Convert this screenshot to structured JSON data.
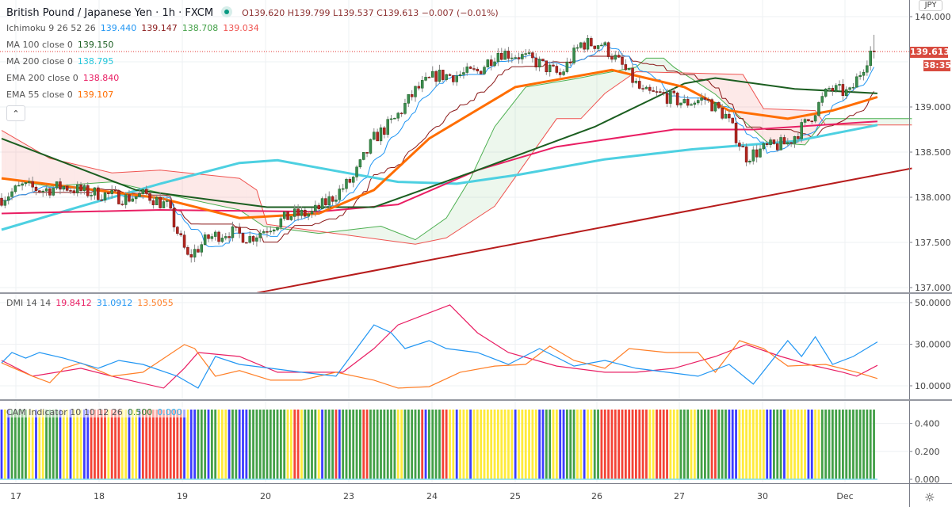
{
  "header": {
    "title": "British Pound / Japanese Yen · 1h · FXCM",
    "ohlc": "O139.620 H139.799 L139.537 C139.613 −0.007 (−0.01%)"
  },
  "legends": {
    "ichimoku": {
      "label": "Ichimoku 9 26 52 26",
      "v1": "139.440",
      "v2": "139.147",
      "v3": "138.708",
      "v4": "139.034"
    },
    "ma100": {
      "label": "MA 100 close 0",
      "value": "139.150"
    },
    "ma200": {
      "label": "MA 200 close 0",
      "value": "138.795"
    },
    "ema200": {
      "label": "EMA 200 close 0",
      "value": "138.840"
    },
    "ema55": {
      "label": "EMA 55 close 0",
      "value": "139.107"
    },
    "dmi": {
      "label": "DMI 14 14",
      "v1": "19.8412",
      "v2": "31.0912",
      "v3": "13.5055"
    },
    "cam": {
      "label": "CAM Indicator 10 10 12 26",
      "v1": "0.500",
      "v2": "0.000"
    }
  },
  "price_axis": {
    "currency": "JPY",
    "ticks": [
      "140.000",
      "139.000",
      "138.500",
      "138.000",
      "137.500",
      "137.000"
    ],
    "last_price": "139.613",
    "countdown": "38:35"
  },
  "dmi_axis": {
    "ticks": [
      "50.0000",
      "30.0000",
      "10.0000"
    ]
  },
  "cam_axis": {
    "ticks": [
      "0.400",
      "0.200",
      "0.000"
    ]
  },
  "time_axis": {
    "ticks": [
      "17",
      "18",
      "19",
      "20",
      "23",
      "24",
      "25",
      "26",
      "27",
      "30",
      "Dec"
    ]
  },
  "icons": {
    "collapse": "chevron-up-icon",
    "settings": "gear-icon",
    "live": "dot-icon"
  },
  "colors": {
    "up": "#3a8c4f",
    "down": "#b3261e",
    "tenkan": "#2196f3",
    "kijun": "#8b1a1a",
    "spanA": "#4caf50",
    "spanB": "#ef5350",
    "ma100": "#1b5e20",
    "ma200": "#4dd0e1",
    "ema200": "#e91e63",
    "ema55": "#ff6d00",
    "trend": "#b71c1c",
    "dmi_adx": "#e91e63",
    "dmi_plus": "#2196f3",
    "dmi_minus": "#ff7f27",
    "cam": {
      "G": "#43a047",
      "R": "#f44336",
      "Y": "#ffeb3b",
      "B": "#3d3dff"
    }
  },
  "chart_data": {
    "type": "candlestick",
    "symbol": "GBPJPY",
    "timeframe": "1h",
    "bars": 254,
    "ylim": [
      136.95,
      140.1
    ],
    "close_keypoints_every_6_bars": [
      137.99,
      138.12,
      138.08,
      138.12,
      138.06,
      138.03,
      137.99,
      138.03,
      137.9,
      137.33,
      137.55,
      137.62,
      137.55,
      137.68,
      137.8,
      137.82,
      138.0,
      138.21,
      138.65,
      138.86,
      139.18,
      139.35,
      139.35,
      139.39,
      139.61,
      139.57,
      139.48,
      139.35,
      139.7,
      139.7,
      139.45,
      139.15,
      139.13,
      139.04,
      139.09,
      138.9,
      138.45,
      138.55,
      138.6,
      138.85,
      139.2,
      139.15,
      139.613
    ],
    "last": {
      "open": 139.62,
      "high": 139.799,
      "low": 139.537,
      "close": 139.613
    },
    "lines": {
      "ma200": [
        [
          0,
          137.64
        ],
        [
          23,
          137.9
        ],
        [
          46,
          138.15
        ],
        [
          69,
          138.38
        ],
        [
          80,
          138.41
        ],
        [
          100,
          138.27
        ],
        [
          115,
          138.17
        ],
        [
          132,
          138.15
        ],
        [
          150,
          138.25
        ],
        [
          175,
          138.42
        ],
        [
          200,
          138.53
        ],
        [
          230,
          138.62
        ],
        [
          254,
          138.8
        ]
      ],
      "ma100": [
        [
          0,
          138.65
        ],
        [
          39,
          138.08
        ],
        [
          77,
          137.89
        ],
        [
          108,
          137.89
        ],
        [
          138,
          138.3
        ],
        [
          172,
          138.78
        ],
        [
          198,
          139.26
        ],
        [
          207,
          139.32
        ],
        [
          230,
          139.2
        ],
        [
          254,
          139.15
        ]
      ],
      "ema55": [
        [
          0,
          138.21
        ],
        [
          23,
          138.1
        ],
        [
          46,
          137.99
        ],
        [
          69,
          137.77
        ],
        [
          92,
          137.82
        ],
        [
          108,
          138.08
        ],
        [
          124,
          138.65
        ],
        [
          149,
          139.22
        ],
        [
          177,
          139.41
        ],
        [
          198,
          139.22
        ],
        [
          211,
          138.96
        ],
        [
          228,
          138.87
        ],
        [
          241,
          138.96
        ],
        [
          254,
          139.11
        ]
      ],
      "ema200": [
        [
          0,
          137.82
        ],
        [
          46,
          137.86
        ],
        [
          92,
          137.84
        ],
        [
          115,
          137.92
        ],
        [
          138,
          138.3
        ],
        [
          161,
          138.56
        ],
        [
          195,
          138.75
        ],
        [
          218,
          138.75
        ],
        [
          254,
          138.84
        ]
      ],
      "trendline": [
        [
          74,
          136.94
        ],
        [
          264,
          138.32
        ]
      ]
    },
    "ichimoku_cloud": {
      "spanA": [
        [
          0,
          138.21
        ],
        [
          14,
          138.12
        ],
        [
          32,
          138.17
        ],
        [
          53,
          137.99
        ],
        [
          69,
          137.86
        ],
        [
          76,
          137.68
        ],
        [
          92,
          137.6
        ],
        [
          110,
          137.68
        ],
        [
          120,
          137.53
        ],
        [
          129,
          137.77
        ],
        [
          136,
          138.21
        ],
        [
          143,
          138.78
        ],
        [
          152,
          139.22
        ],
        [
          166,
          139.31
        ],
        [
          184,
          139.44
        ],
        [
          187,
          139.54
        ],
        [
          192,
          139.54
        ],
        [
          195,
          139.44
        ],
        [
          207,
          139.14
        ],
        [
          222,
          138.61
        ],
        [
          233,
          138.58
        ],
        [
          239,
          138.87
        ],
        [
          264,
          138.87
        ]
      ],
      "spanB": [
        [
          0,
          138.74
        ],
        [
          14,
          138.43
        ],
        [
          32,
          138.27
        ],
        [
          46,
          138.3
        ],
        [
          69,
          138.21
        ],
        [
          74,
          138.08
        ],
        [
          77,
          137.7
        ],
        [
          120,
          137.48
        ],
        [
          129,
          137.55
        ],
        [
          143,
          137.9
        ],
        [
          161,
          138.87
        ],
        [
          168,
          138.87
        ],
        [
          175,
          139.15
        ],
        [
          184,
          139.39
        ],
        [
          215,
          139.36
        ],
        [
          221,
          138.98
        ],
        [
          236,
          138.96
        ],
        [
          239,
          138.8
        ],
        [
          264,
          138.8
        ]
      ]
    },
    "dmi": {
      "ylim": [
        0,
        55
      ],
      "adx": [
        [
          0,
          22.2
        ],
        [
          9,
          14.6
        ],
        [
          23,
          18.4
        ],
        [
          32,
          14.6
        ],
        [
          47,
          8.9
        ],
        [
          53,
          18.4
        ],
        [
          57,
          26
        ],
        [
          69,
          24.1
        ],
        [
          80,
          16.5
        ],
        [
          99,
          16.5
        ],
        [
          108,
          27.9
        ],
        [
          115,
          39.3
        ],
        [
          124,
          45.1
        ],
        [
          130,
          48.9
        ],
        [
          138,
          35.5
        ],
        [
          147,
          26
        ],
        [
          161,
          19.5
        ],
        [
          175,
          16.5
        ],
        [
          184,
          16.5
        ],
        [
          195,
          18.4
        ],
        [
          207,
          24.1
        ],
        [
          216,
          29.8
        ],
        [
          226,
          24.1
        ],
        [
          234,
          20.3
        ],
        [
          244,
          16.5
        ],
        [
          248,
          14.6
        ],
        [
          254,
          19.84
        ]
      ],
      "plus_di": [
        [
          0,
          21
        ],
        [
          3,
          26
        ],
        [
          7,
          23.3
        ],
        [
          11,
          26
        ],
        [
          18,
          23.3
        ],
        [
          28,
          18.4
        ],
        [
          34,
          22.2
        ],
        [
          41,
          20.3
        ],
        [
          51,
          14.6
        ],
        [
          57,
          8.9
        ],
        [
          62,
          24.1
        ],
        [
          69,
          20.3
        ],
        [
          78,
          18.4
        ],
        [
          87,
          16.5
        ],
        [
          97,
          14.6
        ],
        [
          108,
          39.3
        ],
        [
          113,
          35.5
        ],
        [
          117,
          27.9
        ],
        [
          124,
          31.7
        ],
        [
          129,
          27.9
        ],
        [
          138,
          26
        ],
        [
          147,
          20.3
        ],
        [
          156,
          27.9
        ],
        [
          166,
          19.5
        ],
        [
          175,
          22.2
        ],
        [
          184,
          18.4
        ],
        [
          193,
          16.5
        ],
        [
          202,
          14.6
        ],
        [
          211,
          20.3
        ],
        [
          218,
          10.8
        ],
        [
          228,
          31.7
        ],
        [
          232,
          24.1
        ],
        [
          236,
          33.6
        ],
        [
          241,
          20.3
        ],
        [
          247,
          24.1
        ],
        [
          254,
          31.09
        ]
      ],
      "minus_di": [
        [
          0,
          21
        ],
        [
          9,
          14.6
        ],
        [
          14,
          11.5
        ],
        [
          18,
          18.4
        ],
        [
          23,
          21
        ],
        [
          32,
          14.6
        ],
        [
          41,
          16.5
        ],
        [
          53,
          29.8
        ],
        [
          56,
          27.9
        ],
        [
          62,
          14.6
        ],
        [
          69,
          17.3
        ],
        [
          78,
          12.7
        ],
        [
          87,
          12.7
        ],
        [
          97,
          16.5
        ],
        [
          108,
          12.7
        ],
        [
          115,
          8.9
        ],
        [
          124,
          9.6
        ],
        [
          133,
          16.5
        ],
        [
          143,
          19.5
        ],
        [
          152,
          20.3
        ],
        [
          159,
          29.1
        ],
        [
          166,
          22.2
        ],
        [
          175,
          18.4
        ],
        [
          182,
          27.9
        ],
        [
          193,
          26
        ],
        [
          202,
          26
        ],
        [
          207,
          16.5
        ],
        [
          214,
          31.7
        ],
        [
          221,
          27.9
        ],
        [
          228,
          19.5
        ],
        [
          239,
          20.3
        ],
        [
          248,
          16.5
        ],
        [
          254,
          13.51
        ]
      ]
    },
    "cam": {
      "value": 0.5,
      "runs": [
        [
          "B",
          1
        ],
        [
          "Y",
          1
        ],
        [
          "B",
          1
        ],
        [
          "G",
          5
        ],
        [
          "Y",
          2
        ],
        [
          "B",
          1
        ],
        [
          "Y",
          2
        ],
        [
          "G",
          4
        ],
        [
          "B",
          1
        ],
        [
          "Y",
          2
        ],
        [
          "B",
          1
        ],
        [
          "Y",
          3
        ],
        [
          "B",
          2
        ],
        [
          "R",
          5
        ],
        [
          "Y",
          1
        ],
        [
          "R",
          3
        ],
        [
          "Y",
          2
        ],
        [
          "B",
          1
        ],
        [
          "Y",
          2
        ],
        [
          "B",
          1
        ],
        [
          "R",
          12
        ],
        [
          "B",
          1
        ],
        [
          "Y",
          1
        ],
        [
          "B",
          2
        ],
        [
          "G",
          3
        ],
        [
          "B",
          1
        ],
        [
          "G",
          2
        ],
        [
          "Y",
          3
        ],
        [
          "B",
          1
        ],
        [
          "G",
          2
        ],
        [
          "B",
          3
        ],
        [
          "G",
          11
        ],
        [
          "Y",
          2
        ],
        [
          "R",
          2
        ],
        [
          "Y",
          1
        ],
        [
          "G",
          4
        ],
        [
          "Y",
          1
        ],
        [
          "B",
          1
        ],
        [
          "G",
          3
        ],
        [
          "R",
          1
        ],
        [
          "B",
          1
        ],
        [
          "G",
          6
        ],
        [
          "R",
          2
        ],
        [
          "G",
          8
        ],
        [
          "Y",
          2
        ],
        [
          "G",
          5
        ],
        [
          "R",
          1
        ],
        [
          "B",
          1
        ],
        [
          "G",
          4
        ],
        [
          "R",
          2
        ],
        [
          "Y",
          2
        ],
        [
          "B",
          1
        ],
        [
          "Y",
          3
        ],
        [
          "B",
          1
        ],
        [
          "Y",
          12
        ],
        [
          "B",
          1
        ],
        [
          "Y",
          6
        ],
        [
          "B",
          2
        ],
        [
          "G",
          2
        ],
        [
          "Y",
          2
        ],
        [
          "B",
          2
        ],
        [
          "G",
          3
        ],
        [
          "Y",
          2
        ],
        [
          "B",
          1
        ],
        [
          "Y",
          2
        ],
        [
          "G",
          2
        ],
        [
          "R",
          14
        ],
        [
          "Y",
          2
        ],
        [
          "R",
          4
        ],
        [
          "Y",
          3
        ],
        [
          "G",
          3
        ],
        [
          "Y",
          2
        ],
        [
          "G",
          4
        ],
        [
          "R",
          2
        ],
        [
          "G",
          3
        ],
        [
          "B",
          3
        ],
        [
          "Y",
          8
        ],
        [
          "B",
          2
        ],
        [
          "G",
          3
        ],
        [
          "B",
          1
        ],
        [
          "Y",
          6
        ],
        [
          "B",
          2
        ],
        [
          "Y",
          2
        ],
        [
          "G",
          16
        ]
      ]
    }
  }
}
